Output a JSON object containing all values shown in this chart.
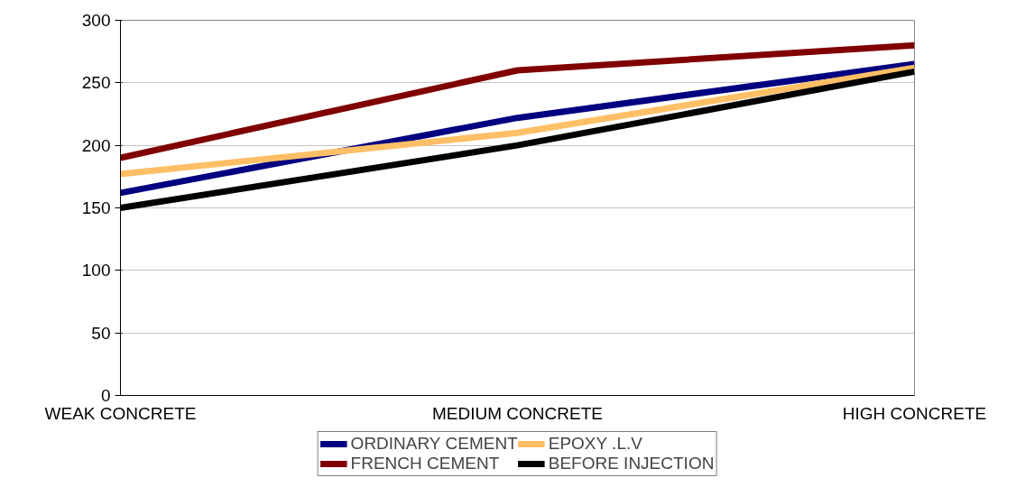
{
  "chart_data": {
    "type": "line",
    "categories": [
      "WEAK CONCRETE",
      "MEDIUM CONCRETE",
      "HIGH CONCRETE"
    ],
    "series": [
      {
        "name": "ORDINARY CEMENT",
        "color": "#000080",
        "values": [
          162,
          222,
          265
        ]
      },
      {
        "name": "FRENCH CEMENT",
        "color": "#800000",
        "values": [
          190,
          260,
          280
        ]
      },
      {
        "name": "EPOXY .L.V",
        "color": "#ffbf66",
        "values": [
          177,
          210,
          262
        ]
      },
      {
        "name": "BEFORE INJECTION",
        "color": "#000000",
        "values": [
          150,
          200,
          259
        ]
      }
    ],
    "ylim": [
      0,
      300
    ],
    "yticks": [
      0,
      50,
      100,
      150,
      200,
      250,
      300
    ],
    "grid": "y",
    "legend": "bottom",
    "marker": "none",
    "line_style": "solid"
  }
}
